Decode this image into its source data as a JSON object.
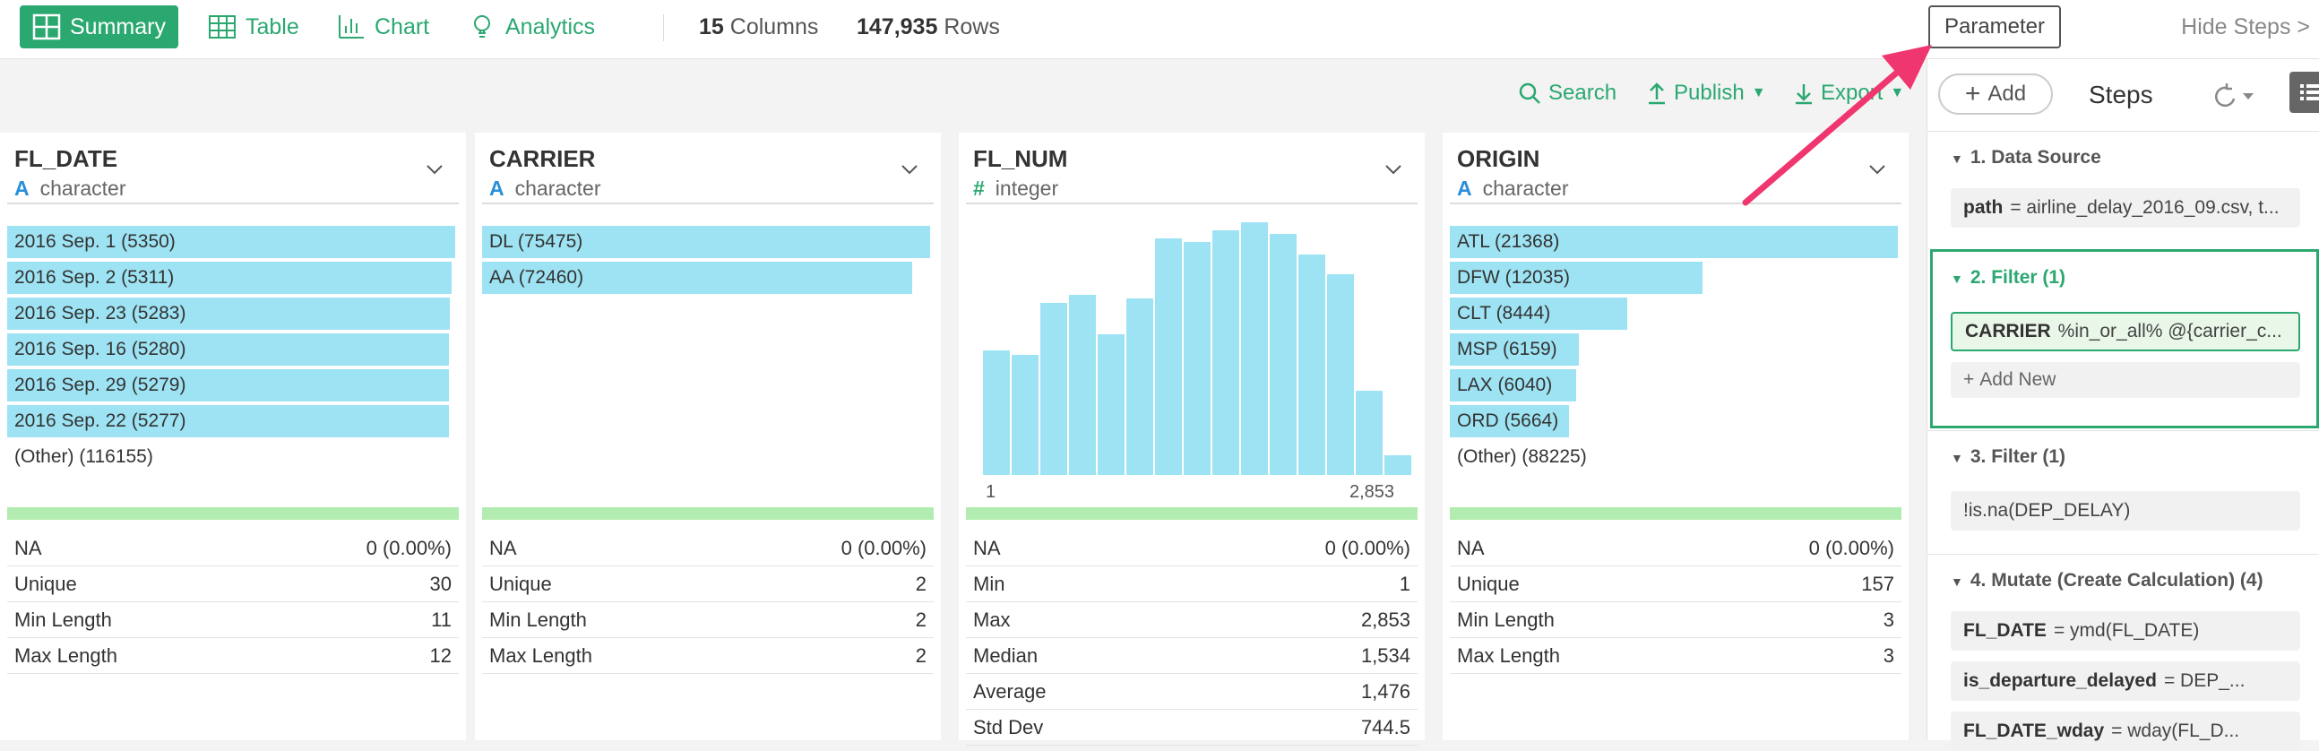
{
  "tabs": [
    {
      "label": "Summary"
    },
    {
      "label": "Table"
    },
    {
      "label": "Chart"
    },
    {
      "label": "Analytics"
    }
  ],
  "meta": {
    "columns_count": "15",
    "columns_label": "Columns",
    "rows_count": "147,935",
    "rows_label": "Rows"
  },
  "header": {
    "parameter_label": "Parameter",
    "hide_steps_label": "Hide Steps >"
  },
  "toolbar": {
    "search_label": "Search",
    "publish_label": "Publish",
    "export_label": "Export"
  },
  "colors": {
    "accent": "#2aa870",
    "bar": "#9ee3f3",
    "strip": "#b3ecb0",
    "arrow": "#f0366e"
  },
  "columns": [
    {
      "name": "FL_DATE",
      "type_icon": "A",
      "type": "character",
      "bars": [
        {
          "label": "2016 Sep. 1 (5350)",
          "value": 5350
        },
        {
          "label": "2016 Sep. 2 (5311)",
          "value": 5311
        },
        {
          "label": "2016 Sep. 23 (5283)",
          "value": 5283
        },
        {
          "label": "2016 Sep. 16 (5280)",
          "value": 5280
        },
        {
          "label": "2016 Sep. 29 (5279)",
          "value": 5279
        },
        {
          "label": "2016 Sep. 22 (5277)",
          "value": 5277
        }
      ],
      "other": "(Other) (116155)",
      "stats": [
        {
          "label": "NA",
          "value": "0 (0.00%)"
        },
        {
          "label": "Unique",
          "value": "30"
        },
        {
          "label": "Min Length",
          "value": "11"
        },
        {
          "label": "Max Length",
          "value": "12"
        }
      ]
    },
    {
      "name": "CARRIER",
      "type_icon": "A",
      "type": "character",
      "bars": [
        {
          "label": "DL (75475)",
          "value": 75475
        },
        {
          "label": "AA (72460)",
          "value": 72460
        }
      ],
      "other": "",
      "stats": [
        {
          "label": "NA",
          "value": "0 (0.00%)"
        },
        {
          "label": "Unique",
          "value": "2"
        },
        {
          "label": "Min Length",
          "value": "2"
        },
        {
          "label": "Max Length",
          "value": "2"
        }
      ]
    },
    {
      "name": "FL_NUM",
      "type_icon": "#",
      "type": "integer",
      "histogram": {
        "min_label": "1",
        "max_label": "2,853",
        "values": [
          31,
          30,
          43,
          45,
          35,
          44,
          59,
          58,
          61,
          63,
          60,
          55,
          50,
          21,
          5
        ]
      },
      "stats": [
        {
          "label": "NA",
          "value": "0 (0.00%)"
        },
        {
          "label": "Min",
          "value": "1"
        },
        {
          "label": "Max",
          "value": "2,853"
        },
        {
          "label": "Median",
          "value": "1,534"
        },
        {
          "label": "Average",
          "value": "1,476"
        },
        {
          "label": "Std Dev",
          "value": "744.5"
        }
      ]
    },
    {
      "name": "ORIGIN",
      "type_icon": "A",
      "type": "character",
      "bars": [
        {
          "label": "ATL (21368)",
          "value": 21368
        },
        {
          "label": "DFW (12035)",
          "value": 12035
        },
        {
          "label": "CLT (8444)",
          "value": 8444
        },
        {
          "label": "MSP (6159)",
          "value": 6159
        },
        {
          "label": "LAX (6040)",
          "value": 6040
        },
        {
          "label": "ORD (5664)",
          "value": 5664
        }
      ],
      "other": "(Other) (88225)",
      "stats": [
        {
          "label": "NA",
          "value": "0 (0.00%)"
        },
        {
          "label": "Unique",
          "value": "157"
        },
        {
          "label": "Min Length",
          "value": "3"
        },
        {
          "label": "Max Length",
          "value": "3"
        }
      ]
    }
  ],
  "steps_panel": {
    "add_label": "Add",
    "title": "Steps",
    "steps": [
      {
        "header": "1. Data Source",
        "items": [
          {
            "key": "path",
            "text": "= airline_delay_2016_09.csv, t..."
          }
        ]
      },
      {
        "header": "2. Filter (1)",
        "items": [
          {
            "key": "CARRIER",
            "text": "%in_or_all% @{carrier_c..."
          }
        ],
        "add_new": "Add New"
      },
      {
        "header": "3. Filter (1)",
        "items": [
          {
            "key": "",
            "text": "!is.na(DEP_DELAY)"
          }
        ]
      },
      {
        "header": "4. Mutate (Create Calculation) (4)",
        "items": [
          {
            "key": "FL_DATE",
            "text": "= ymd(FL_DATE)"
          },
          {
            "key": "is_departure_delayed",
            "text": "= DEP_..."
          },
          {
            "key": "FL_DATE_wday",
            "text": "= wday(FL_D..."
          }
        ]
      }
    ]
  }
}
